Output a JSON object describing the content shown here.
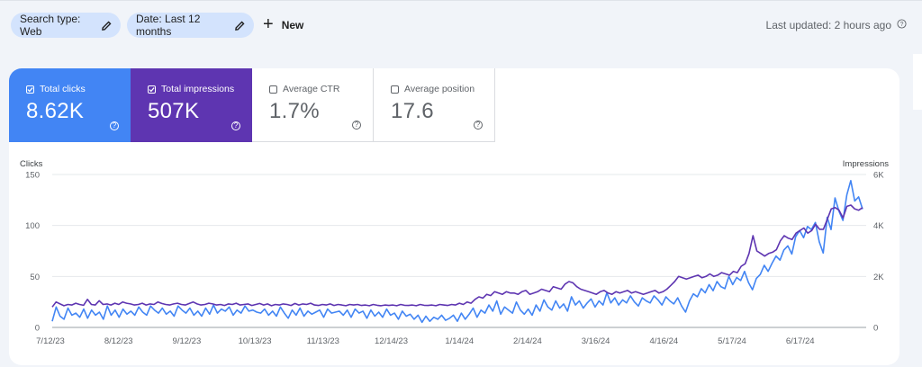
{
  "filters": {
    "search_type": "Search type: Web",
    "date": "Date: Last 12 months",
    "new_label": "New",
    "last_updated": "Last updated: 2 hours ago"
  },
  "metrics": [
    {
      "label": "Total clicks",
      "value": "8.62K",
      "checked": true,
      "color": "#4285f4"
    },
    {
      "label": "Total impressions",
      "value": "507K",
      "checked": true,
      "color": "#5e35b1"
    },
    {
      "label": "Average CTR",
      "value": "1.7%",
      "checked": false
    },
    {
      "label": "Average position",
      "value": "17.6",
      "checked": false
    }
  ],
  "chart_data": {
    "type": "line",
    "left_axis_label": "Clicks",
    "right_axis_label": "Impressions",
    "left_ticks": [
      "150",
      "100",
      "50",
      "0"
    ],
    "right_ticks": [
      "6K",
      "4K",
      "2K",
      "0"
    ],
    "ylim_left": [
      0,
      150
    ],
    "ylim_right": [
      0,
      6000
    ],
    "x_tick_labels": [
      "7/12/23",
      "8/12/23",
      "9/12/23",
      "10/13/23",
      "11/13/23",
      "12/14/23",
      "1/14/24",
      "2/14/24",
      "3/16/24",
      "4/16/24",
      "5/17/24",
      "6/17/24"
    ],
    "grid": true,
    "series": [
      {
        "name": "Clicks",
        "axis": "left",
        "color": "#4285f4",
        "values": [
          6,
          20,
          11,
          8,
          19,
          12,
          14,
          10,
          18,
          9,
          17,
          12,
          15,
          8,
          21,
          12,
          17,
          10,
          18,
          13,
          16,
          12,
          20,
          15,
          12,
          21,
          17,
          14,
          19,
          13,
          16,
          11,
          21,
          17,
          14,
          19,
          12,
          16,
          11,
          19,
          13,
          22,
          14,
          18,
          16,
          20,
          12,
          17,
          14,
          21,
          16,
          17,
          15,
          14,
          18,
          12,
          16,
          11,
          20,
          14,
          9,
          17,
          12,
          19,
          11,
          16,
          13,
          15,
          17,
          10,
          18,
          14,
          15,
          16,
          12,
          17,
          10,
          18,
          14,
          16,
          9,
          17,
          11,
          15,
          10,
          18,
          12,
          14,
          8,
          16,
          11,
          13,
          8,
          12,
          5,
          11,
          6,
          10,
          8,
          12,
          7,
          9,
          12,
          6,
          14,
          8,
          13,
          19,
          10,
          17,
          14,
          22,
          16,
          26,
          13,
          20,
          17,
          14,
          25,
          17,
          13,
          18,
          12,
          22,
          16,
          27,
          20,
          17,
          26,
          19,
          23,
          16,
          30,
          22,
          26,
          19,
          24,
          28,
          20,
          26,
          22,
          34,
          24,
          29,
          22,
          27,
          24,
          31,
          25,
          21,
          29,
          26,
          24,
          31,
          27,
          22,
          30,
          26,
          23,
          29,
          21,
          15,
          26,
          33,
          30,
          38,
          34,
          42,
          36,
          45,
          40,
          38,
          50,
          42,
          49,
          46,
          55,
          44,
          37,
          48,
          52,
          61,
          55,
          63,
          70,
          66,
          76,
          80,
          72,
          89,
          95,
          88,
          99,
          96,
          103,
          84,
          73,
          108,
          96,
          127,
          114,
          105,
          130,
          144,
          124,
          128,
          116
        ]
      },
      {
        "name": "Impressions",
        "axis": "right",
        "color": "#5e35b1",
        "values": [
          800,
          1000,
          920,
          850,
          900,
          880,
          950,
          900,
          870,
          1100,
          900,
          880,
          1050,
          900,
          920,
          880,
          950,
          900,
          1000,
          950,
          920,
          880,
          900,
          950,
          880,
          920,
          900,
          1000,
          940,
          900,
          880,
          920,
          950,
          900,
          880,
          940,
          1000,
          920,
          880,
          900,
          950,
          920,
          880,
          900,
          860,
          920,
          900,
          950,
          880,
          900,
          920,
          860,
          900,
          940,
          880,
          920,
          850,
          900,
          880,
          920,
          900,
          860,
          940,
          880,
          920,
          900,
          950,
          880,
          860,
          900,
          880,
          920,
          860,
          900,
          880,
          850,
          900,
          880,
          900,
          860,
          880,
          850,
          900,
          870,
          850,
          880,
          860,
          880,
          850,
          900,
          870,
          860,
          880,
          850,
          900,
          870,
          860,
          880,
          850,
          900,
          880,
          860,
          900,
          880,
          950,
          900,
          1000,
          950,
          1100,
          1200,
          1150,
          1300,
          1250,
          1400,
          1350,
          1300,
          1400,
          1350,
          1350,
          1300,
          1400,
          1450,
          1300,
          1350,
          1400,
          1500,
          1450,
          1400,
          1600,
          1550,
          1500,
          1700,
          1800,
          1750,
          1600,
          1500,
          1450,
          1400,
          1350,
          1300,
          1400,
          1450,
          1350,
          1300,
          1400,
          1350,
          1400,
          1450,
          1350,
          1400,
          1350,
          1300,
          1350,
          1400,
          1450,
          1350,
          1400,
          1500,
          1650,
          1800,
          2000,
          1950,
          1900,
          1950,
          2000,
          2050,
          1950,
          2000,
          2100,
          2000,
          2050,
          2150,
          2100,
          2050,
          2200,
          2150,
          2400,
          2500,
          2900,
          3600,
          3000,
          2900,
          2800,
          2900,
          2950,
          3050,
          3400,
          3600,
          3500,
          3450,
          3700,
          3800,
          3900,
          3700,
          3800,
          4050,
          3850,
          3850,
          4250,
          4650,
          4700,
          4600,
          4300,
          4750,
          4800,
          4650,
          4600,
          4700
        ]
      }
    ]
  }
}
